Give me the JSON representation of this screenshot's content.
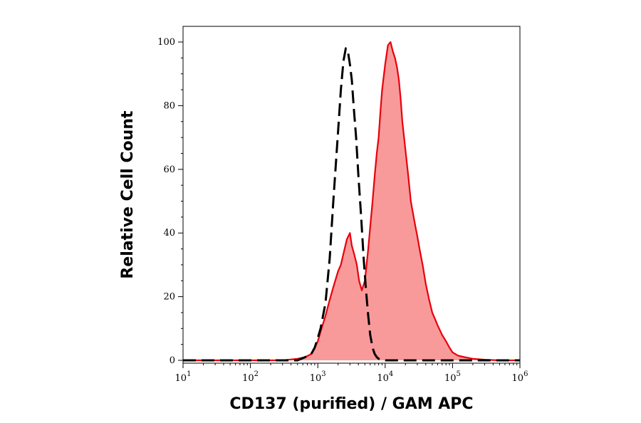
{
  "chart_data": {
    "type": "area",
    "xlabel": "CD137 (purified) / GAM APC",
    "ylabel": "Relative Cell Count",
    "x_scale": "log",
    "xlim": [
      10,
      1000000
    ],
    "ylim": [
      0,
      100
    ],
    "x_ticks": [
      {
        "base": "10",
        "exp": "1",
        "value": 10
      },
      {
        "base": "10",
        "exp": "2",
        "value": 100
      },
      {
        "base": "10",
        "exp": "3",
        "value": 1000
      },
      {
        "base": "10",
        "exp": "4",
        "value": 10000
      },
      {
        "base": "10",
        "exp": "5",
        "value": 100000
      },
      {
        "base": "10",
        "exp": "6",
        "value": 1000000
      }
    ],
    "y_ticks": [
      "0",
      "20",
      "40",
      "60",
      "80",
      "100"
    ],
    "grid": false,
    "legend": "none",
    "series": [
      {
        "style": "filled",
        "color": "#e8000b",
        "fill": "#f99a9a",
        "x": [
          10,
          100,
          300,
          500,
          650,
          800,
          900,
          1000,
          1100,
          1300,
          1500,
          1700,
          2000,
          2200,
          2500,
          2700,
          3000,
          3200,
          3500,
          3800,
          4100,
          4500,
          5000,
          5300,
          5600,
          6000,
          6500,
          7000,
          7500,
          8000,
          8500,
          9000,
          10000,
          11000,
          12000,
          13000,
          14000,
          15000,
          16000,
          17000,
          18000,
          20000,
          22000,
          24000,
          27000,
          30000,
          33000,
          36000,
          40000,
          45000,
          50000,
          55000,
          60000,
          70000,
          80000,
          90000,
          100000,
          120000,
          150000,
          200000,
          300000,
          500000,
          1000000
        ],
        "y": [
          0,
          0,
          0,
          0.5,
          1,
          2,
          4,
          6,
          9,
          14,
          19,
          23,
          28,
          30,
          35,
          38,
          40,
          36,
          33,
          30,
          25,
          22,
          25,
          30,
          35,
          42,
          50,
          58,
          65,
          70,
          78,
          85,
          93,
          99,
          100,
          97,
          95,
          92,
          88,
          82,
          75,
          66,
          58,
          50,
          44,
          39,
          34,
          30,
          24,
          19,
          15,
          13,
          11,
          8,
          6,
          4,
          2.5,
          1.5,
          1,
          0.5,
          0.2,
          0,
          0
        ]
      },
      {
        "style": "dashed",
        "color": "#000000",
        "x": [
          10,
          300,
          500,
          650,
          800,
          900,
          1000,
          1100,
          1300,
          1500,
          1700,
          2000,
          2200,
          2400,
          2600,
          2800,
          3000,
          3200,
          3400,
          3700,
          4000,
          4400,
          4800,
          5200,
          5600,
          6000,
          6500,
          7000,
          7500,
          8000,
          9000,
          10000,
          15000,
          1000000
        ],
        "y": [
          0,
          0,
          0,
          1,
          2,
          4,
          7,
          10,
          18,
          32,
          50,
          72,
          85,
          94,
          98,
          97,
          93,
          88,
          80,
          70,
          58,
          45,
          32,
          22,
          14,
          8,
          4,
          2,
          1,
          0.5,
          0.2,
          0,
          0,
          0
        ]
      }
    ]
  }
}
